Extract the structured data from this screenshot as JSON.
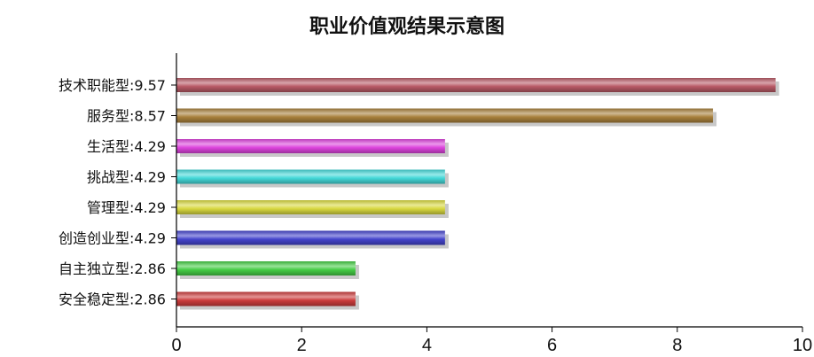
{
  "chart_data": {
    "type": "bar",
    "orientation": "horizontal",
    "title": "职业价值观结果示意图",
    "categories": [
      "技术职能型",
      "服务型",
      "生活型",
      "挑战型",
      "管理型",
      "创造创业型",
      "自主独立型",
      "安全稳定型"
    ],
    "values": [
      9.57,
      8.57,
      4.29,
      4.29,
      4.29,
      4.29,
      2.86,
      2.86
    ],
    "value_labels": [
      "9.57",
      "8.57",
      "4.29",
      "4.29",
      "4.29",
      "4.29",
      "2.86",
      "2.86"
    ],
    "separator": ":",
    "colors": [
      "#b85a66",
      "#a8803c",
      "#dd44dd",
      "#44d8d8",
      "#d8d840",
      "#4444cc",
      "#44cc44",
      "#cc3c3c"
    ],
    "xlim": [
      0,
      10
    ],
    "xticks": [
      "0",
      "2",
      "4",
      "6",
      "8",
      "10"
    ],
    "xlabel": "",
    "ylabel": "",
    "grid": false,
    "legend": "none"
  }
}
